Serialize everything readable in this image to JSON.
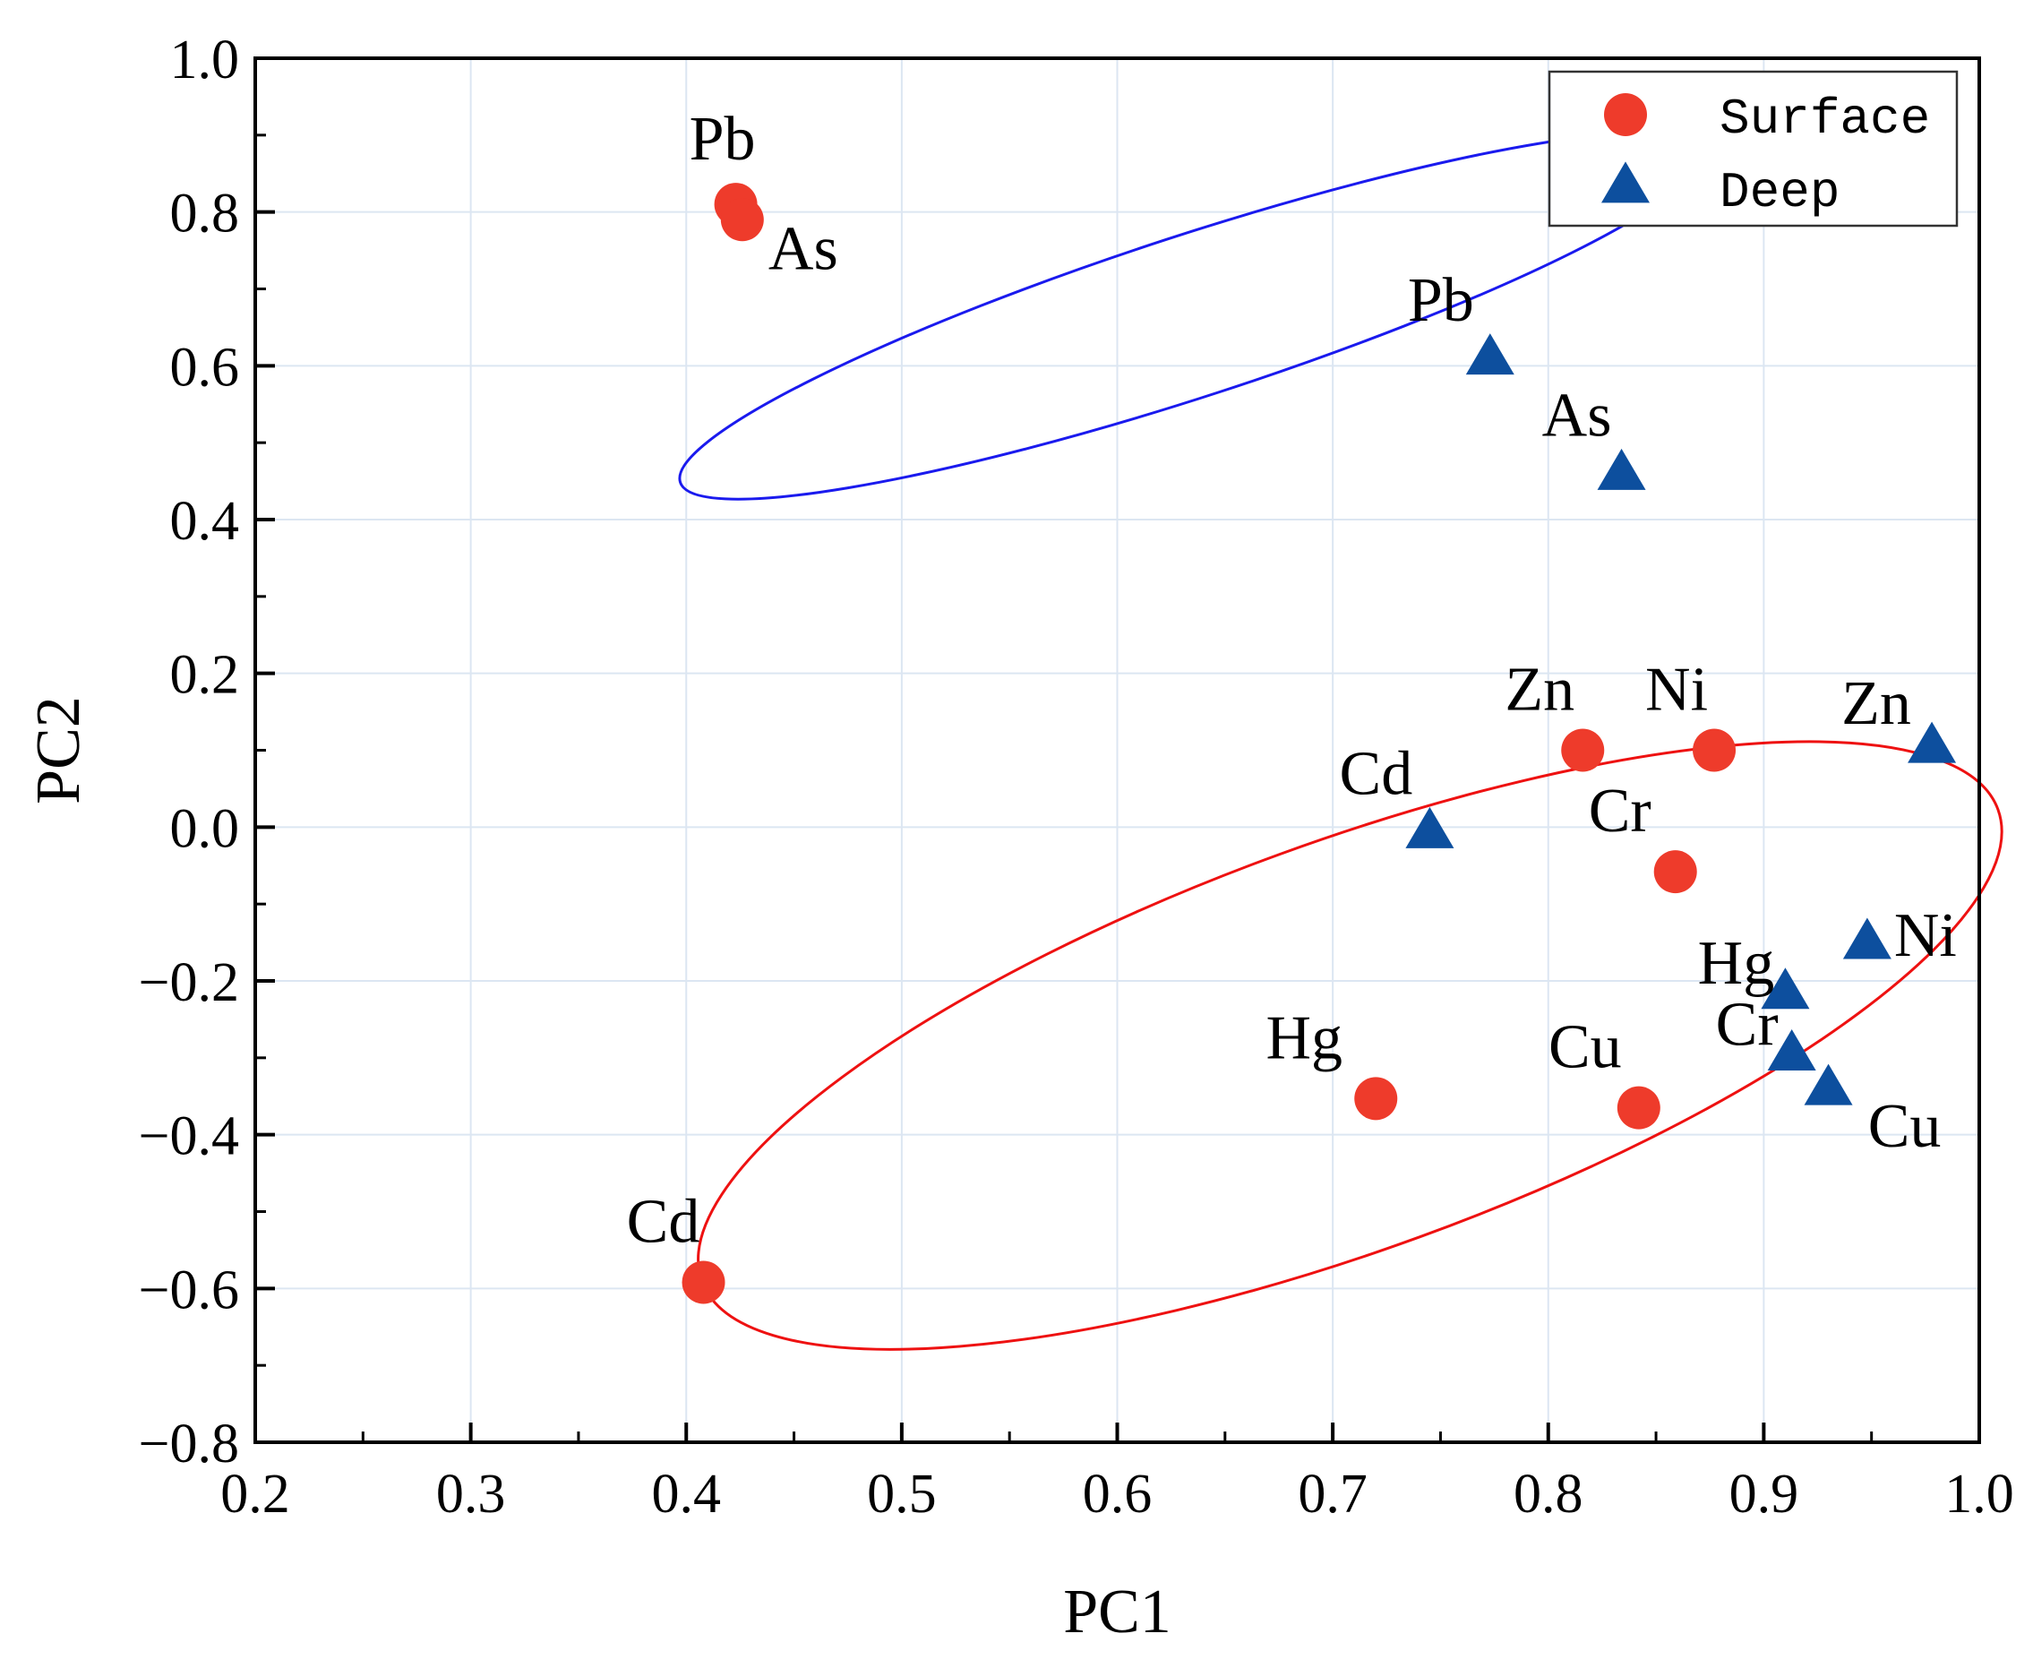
{
  "chart_data": {
    "type": "scatter",
    "xlabel": "PC1",
    "ylabel": "PC2",
    "xlim": [
      0.2,
      1.0
    ],
    "ylim": [
      -0.8,
      1.0
    ],
    "xticks": [
      "0.2",
      "0.3",
      "0.4",
      "0.5",
      "0.6",
      "0.7",
      "0.8",
      "0.9",
      "1.0"
    ],
    "yticks": [
      "−0.8",
      "−0.6",
      "−0.4",
      "−0.2",
      "0.0",
      "0.2",
      "0.4",
      "0.6",
      "0.8",
      "1.0"
    ],
    "grid": true,
    "legend_position": "top-right",
    "series": [
      {
        "name": "Surface",
        "marker": "circle",
        "color": "#ee3b2b",
        "points": [
          {
            "label": "Pb",
            "x": 0.423,
            "y": 0.81
          },
          {
            "label": "As",
            "x": 0.426,
            "y": 0.79
          },
          {
            "label": "Zn",
            "x": 0.816,
            "y": 0.1
          },
          {
            "label": "Ni",
            "x": 0.877,
            "y": 0.1
          },
          {
            "label": "Cr",
            "x": 0.859,
            "y": -0.058
          },
          {
            "label": "Hg",
            "x": 0.72,
            "y": -0.353
          },
          {
            "label": "Cu",
            "x": 0.842,
            "y": -0.365
          },
          {
            "label": "Cd",
            "x": 0.408,
            "y": -0.592
          }
        ]
      },
      {
        "name": "Deep",
        "marker": "triangle",
        "color": "#0d4f9e",
        "points": [
          {
            "label": "Pb",
            "x": 0.773,
            "y": 0.61
          },
          {
            "label": "As",
            "x": 0.834,
            "y": 0.46
          },
          {
            "label": "Zn",
            "x": 0.978,
            "y": 0.105
          },
          {
            "label": "Cd",
            "x": 0.745,
            "y": -0.006
          },
          {
            "label": "Ni",
            "x": 0.948,
            "y": -0.15
          },
          {
            "label": "Hg",
            "x": 0.91,
            "y": -0.215
          },
          {
            "label": "Cr",
            "x": 0.913,
            "y": -0.295
          },
          {
            "label": "Cu",
            "x": 0.93,
            "y": -0.34
          }
        ]
      }
    ],
    "groups": [
      {
        "color": "#1a1aee",
        "cx": 0.635,
        "cy": 0.665,
        "rx": 0.25,
        "ry": 0.105,
        "angle": -18
      },
      {
        "color": "#ee1111",
        "cx": 0.708,
        "cy": -0.284,
        "rx": 0.32,
        "ry": 0.265,
        "angle": -20
      }
    ]
  }
}
